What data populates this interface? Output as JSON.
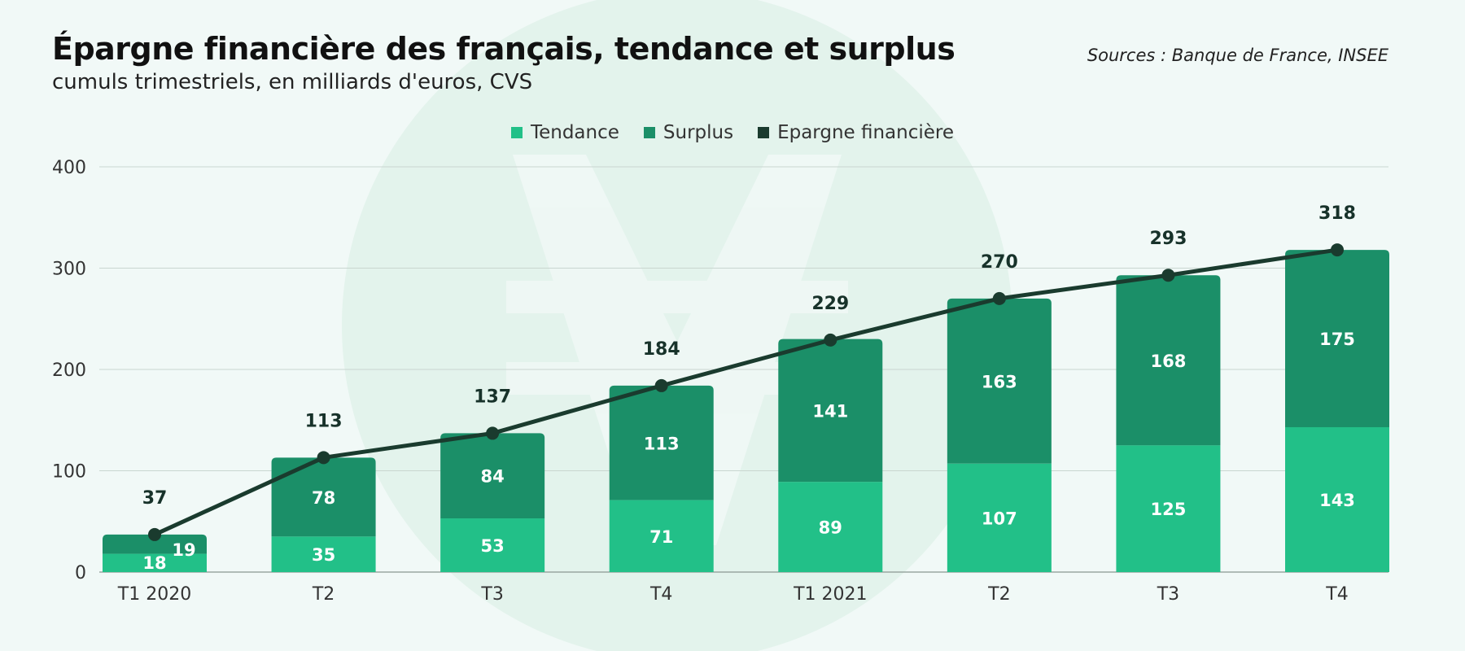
{
  "title": "Épargne financière des français, tendance et surplus",
  "subtitle": "cumuls trimestriels, en milliards d'euros, CVS",
  "source": "Sources : Banque de France, INSEE",
  "colors": {
    "tendance": "#22c088",
    "surplus": "#1b8f68",
    "epargne": "#1a3b2e",
    "background": "#f1f9f7",
    "watermark": "#e3f3ec"
  },
  "legend": [
    {
      "label": "Tendance",
      "color": "#22c088"
    },
    {
      "label": "Surplus",
      "color": "#1b8f68"
    },
    {
      "label": "Epargne financière",
      "color": "#1a3b2e"
    }
  ],
  "chart_data": {
    "type": "bar",
    "stacked": true,
    "categories": [
      "T1 2020",
      "T2",
      "T3",
      "T4",
      "T1 2021",
      "T2",
      "T3",
      "T4"
    ],
    "series": [
      {
        "name": "Tendance",
        "type": "bar",
        "values": [
          18,
          35,
          53,
          71,
          89,
          107,
          125,
          143
        ]
      },
      {
        "name": "Surplus",
        "type": "bar",
        "values": [
          19,
          78,
          84,
          113,
          141,
          163,
          168,
          175
        ]
      },
      {
        "name": "Epargne financière",
        "type": "line",
        "values": [
          37,
          113,
          137,
          184,
          229,
          270,
          293,
          318
        ]
      }
    ],
    "y_ticks": [
      0,
      100,
      200,
      300,
      400
    ],
    "ylim": [
      0,
      400
    ],
    "grid": true,
    "legend_position": "top-center"
  }
}
